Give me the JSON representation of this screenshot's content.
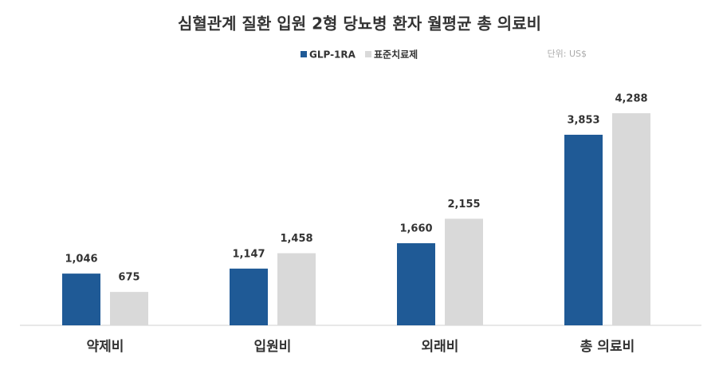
{
  "chart_data": {
    "type": "bar",
    "title": "심혈관계 질환 입원 2형 당뇨병 환자 월평균 총 의료비",
    "unit_note": "단위: US$",
    "categories": [
      "약제비",
      "입원비",
      "외래비",
      "총 의료비"
    ],
    "series": [
      {
        "name": "GLP-1RA",
        "color": "#1f5a96",
        "values": [
          1046,
          1147,
          1660,
          3853
        ],
        "value_labels": [
          "1,046",
          "1,147",
          "1,660",
          "3,853"
        ]
      },
      {
        "name": "표준치료제",
        "color": "#d9d9d9",
        "values": [
          675,
          1458,
          2155,
          4288
        ],
        "value_labels": [
          "675",
          "1,458",
          "2,155",
          "4,288"
        ]
      }
    ]
  }
}
